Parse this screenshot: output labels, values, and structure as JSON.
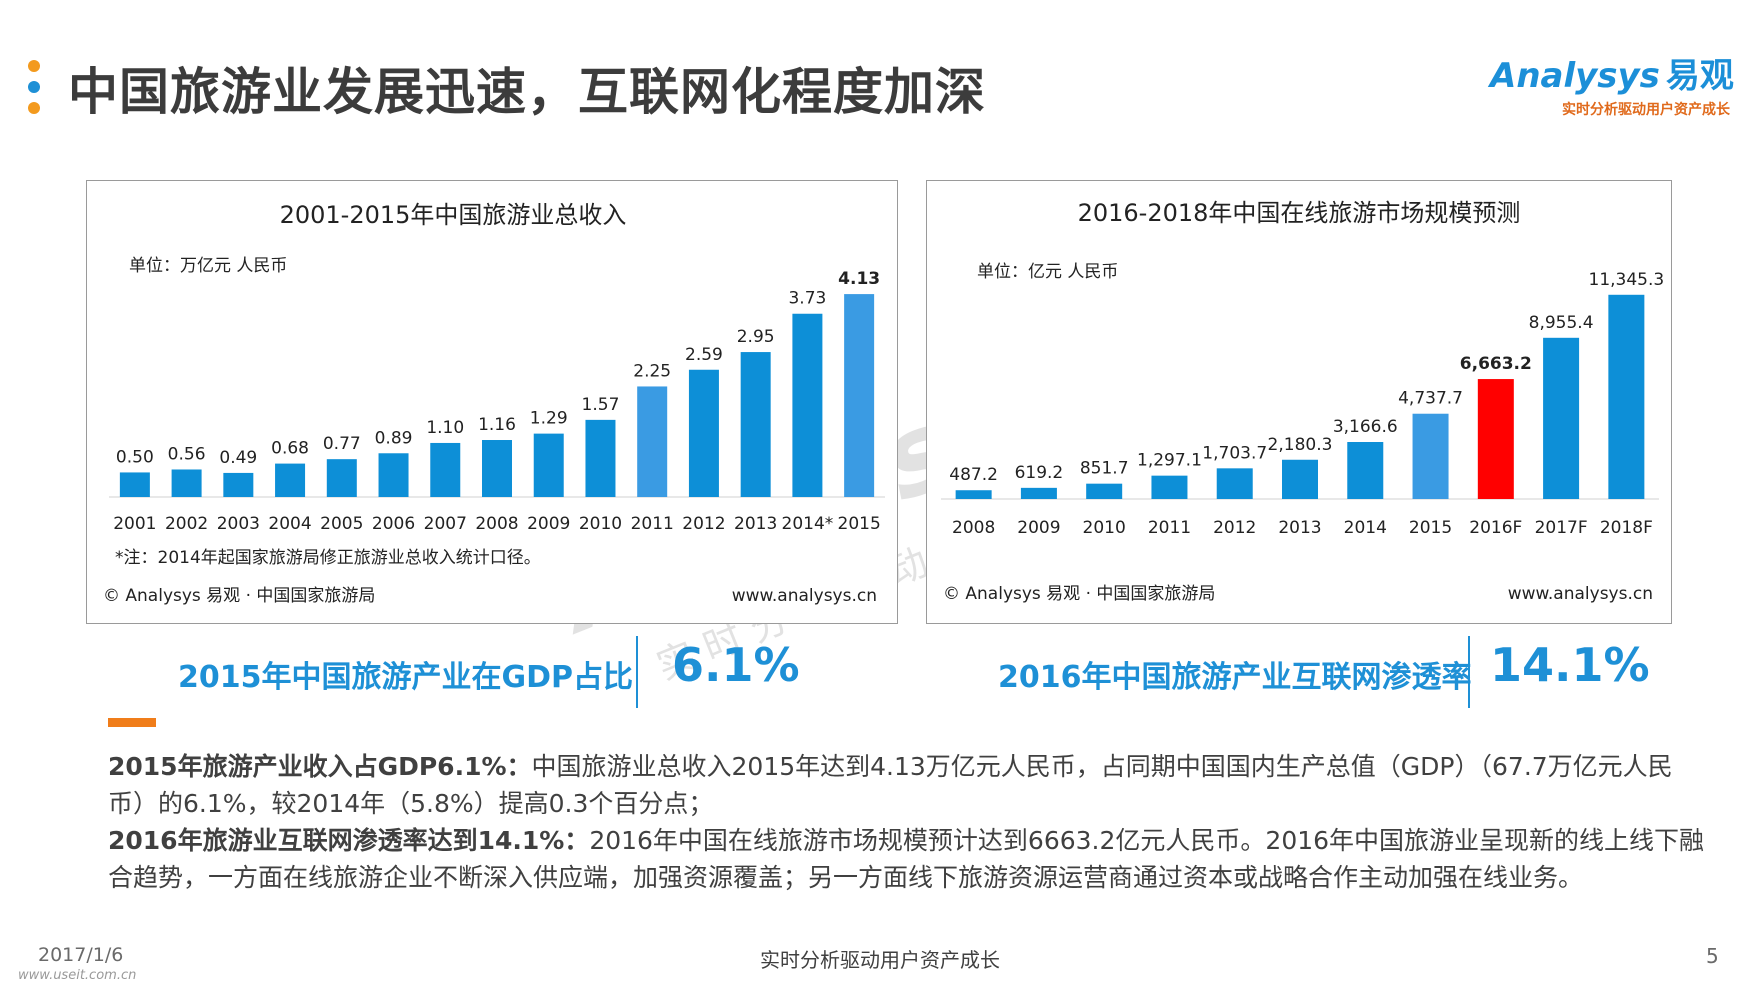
{
  "title": "中国旅游业发展迅速，互联网化程度加深",
  "colors": {
    "blue": "#0d8fd7",
    "light_blue": "#3a9be3",
    "red": "#ff0000",
    "orange": "#f39a1e",
    "accent_blue": "#1e90d6"
  },
  "brand": {
    "name_en": "Analysys",
    "name_cn": "易观",
    "slogan": "实时分析驱动用户资产成长"
  },
  "chart_data": [
    {
      "type": "bar",
      "title": "2001-2015年中国旅游业总收入",
      "unit": "单位：万亿元 人民币",
      "categories": [
        "2001",
        "2002",
        "2003",
        "2004",
        "2005",
        "2006",
        "2007",
        "2008",
        "2009",
        "2010",
        "2011",
        "2012",
        "2013",
        "2014*",
        "2015"
      ],
      "values": [
        0.5,
        0.56,
        0.49,
        0.68,
        0.77,
        0.89,
        1.1,
        1.16,
        1.29,
        1.57,
        2.25,
        2.59,
        2.95,
        3.73,
        4.13
      ],
      "labels": [
        "0.50",
        "0.56",
        "0.49",
        "0.68",
        "0.77",
        "0.89",
        "1.10",
        "1.16",
        "1.29",
        "1.57",
        "2.25",
        "2.59",
        "2.95",
        "3.73",
        "4.13"
      ],
      "bar_styles": [
        "dark",
        "dark",
        "dark",
        "dark",
        "dark",
        "dark",
        "dark",
        "dark",
        "dark",
        "dark",
        "light",
        "dark",
        "dark",
        "dark",
        "light"
      ],
      "bold_labels": [
        false,
        false,
        false,
        false,
        false,
        false,
        false,
        false,
        false,
        false,
        false,
        false,
        false,
        false,
        true
      ],
      "ylim": [
        0,
        4.6
      ],
      "note": "*注：2014年起国家旅游局修正旅游业总收入统计口径。",
      "source": "© Analysys 易观 · 中国国家旅游局",
      "website": "www.analysys.cn"
    },
    {
      "type": "bar",
      "title": "2016-2018年中国在线旅游市场规模预测",
      "unit": "单位：亿元 人民币",
      "categories": [
        "2008",
        "2009",
        "2010",
        "2011",
        "2012",
        "2013",
        "2014",
        "2015",
        "2016F",
        "2017F",
        "2018F"
      ],
      "values": [
        487.2,
        619.2,
        851.7,
        1297.1,
        1703.7,
        2180.3,
        3166.6,
        4737.7,
        6663.2,
        8955.4,
        11345.3
      ],
      "labels": [
        "487.2",
        "619.2",
        "851.7",
        "1,297.1",
        "1,703.7",
        "2,180.3",
        "3,166.6",
        "4,737.7",
        "6,663.2",
        "8,955.4",
        "11,345.3"
      ],
      "bar_styles": [
        "dark",
        "dark",
        "dark",
        "dark",
        "dark",
        "dark",
        "dark",
        "light",
        "red",
        "dark",
        "dark"
      ],
      "bold_labels": [
        false,
        false,
        false,
        false,
        false,
        false,
        false,
        false,
        true,
        false,
        false
      ],
      "ylim": [
        0,
        13000
      ],
      "source": "© Analysys 易观 · 中国国家旅游局",
      "website": "www.analysys.cn"
    }
  ],
  "kpis": [
    {
      "label": "2015年中国旅游产业在GDP占比",
      "value": "6.1%"
    },
    {
      "label": "2016年中国旅游产业互联网渗透率",
      "value": "14.1%"
    }
  ],
  "summary": {
    "p1_bold": "2015年旅游产业收入占GDP6.1%：",
    "p1_text": "中国旅游业总收入2015年达到4.13万亿元人民币，占同期中国国内生产总值（GDP）（67.7万亿元人民币）的6.1%，较2014年（5.8%）提高0.3个百分点；",
    "p2_bold": "2016年旅游业互联网渗透率达到14.1%：",
    "p2_text": "2016年中国在线旅游市场规模预计达到6663.2亿元人民币。2016年中国旅游业呈现新的线上线下融合趋势，一方面在线旅游企业不断深入供应端，加强资源覆盖；另一方面线下旅游资源运营商通过资本或战略合作主动加强在线业务。"
  },
  "footer": {
    "date": "2017/1/6",
    "site": "www.useit.com.cn",
    "slogan": "实时分析驱动用户资产成长",
    "page": "5"
  },
  "watermark": {
    "main": "Analysys 易观",
    "sub": "实时分析驱动用户资产成长"
  }
}
